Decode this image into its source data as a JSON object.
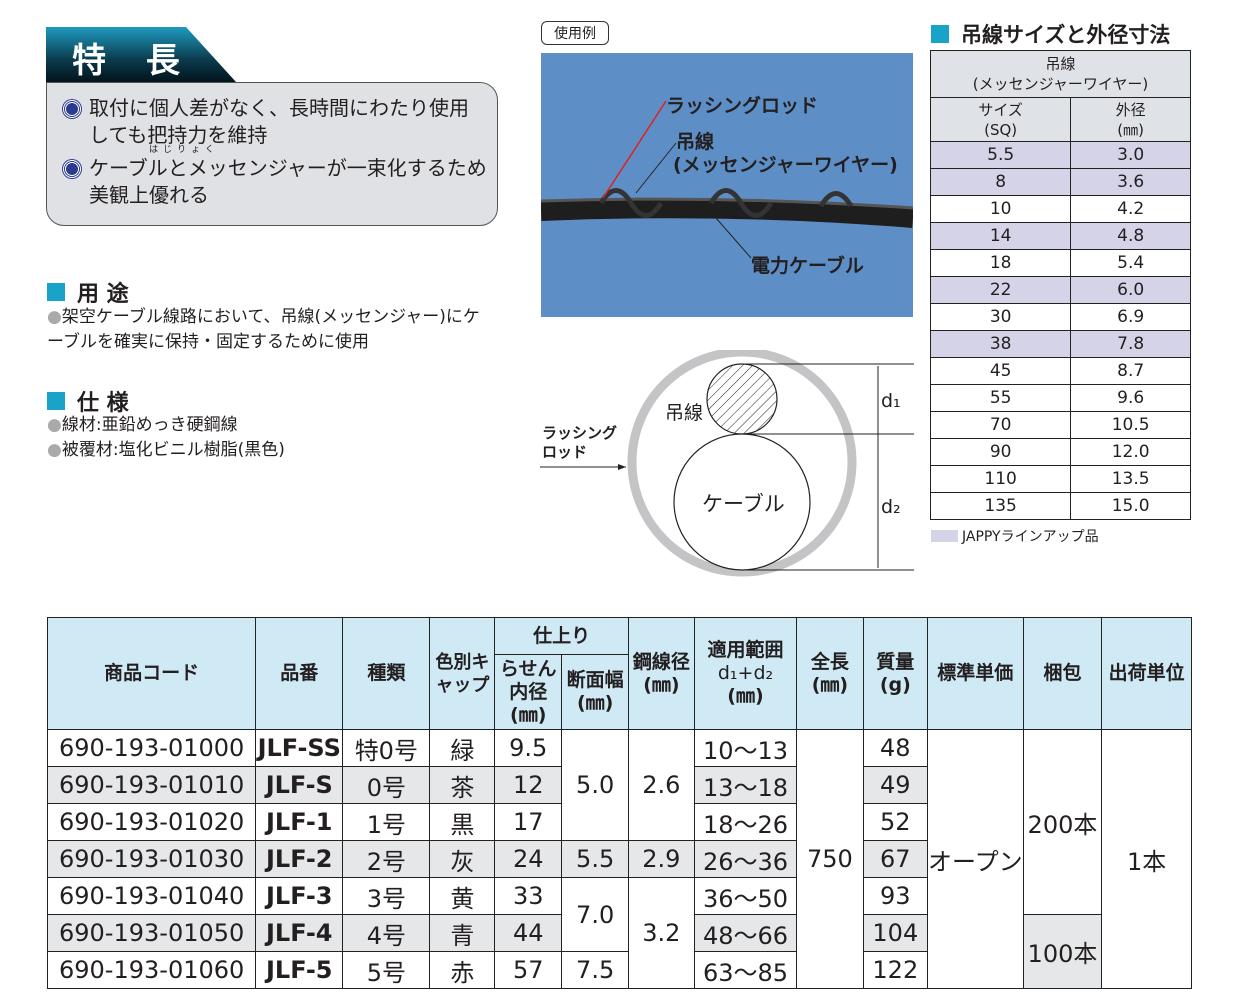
{
  "features": {
    "title": "特 長",
    "items": [
      "取付に個人差がなく、長時間にわたり使用しても把持力を維持",
      "ケーブルとメッセンジャーが一束化するため美観上優れる"
    ],
    "ruby": "はじりょく"
  },
  "usage": {
    "title": "用 途",
    "items": [
      "架空ケーブル線路において、吊線(メッセンジャー)にケーブルを確実に保持・固定するために使用"
    ]
  },
  "spec": {
    "title": "仕 様",
    "items": [
      "線材:亜鉛めっき硬鋼線",
      "被覆材:塩化ビニル樹脂(黒色)"
    ]
  },
  "example": {
    "label": "使用例",
    "lashing_rod": "ラッシングロッド",
    "messenger": "吊線",
    "messenger_sub": "(メッセンジャーワイヤー)",
    "power_cable": "電力ケーブル"
  },
  "diagram": {
    "messenger": "吊線",
    "lashing_rod_1": "ラッシング",
    "lashing_rod_2": "ロッド",
    "cable": "ケーブル",
    "d1": "d₁",
    "d2": "d₂"
  },
  "size_table": {
    "title": "吊線サイズと外径寸法",
    "group_header": "吊線",
    "group_sub": "(メッセンジャーワイヤー)",
    "col_size": "サイズ",
    "col_size_unit": "(SQ)",
    "col_od": "外径",
    "col_od_unit": "(㎜)",
    "rows": [
      [
        "5.5",
        "3.0",
        true
      ],
      [
        "8",
        "3.6",
        true
      ],
      [
        "10",
        "4.2",
        false
      ],
      [
        "14",
        "4.8",
        true
      ],
      [
        "18",
        "5.4",
        false
      ],
      [
        "22",
        "6.0",
        true
      ],
      [
        "30",
        "6.9",
        false
      ],
      [
        "38",
        "7.8",
        true
      ],
      [
        "45",
        "8.7",
        false
      ],
      [
        "55",
        "9.6",
        false
      ],
      [
        "70",
        "10.5",
        false
      ],
      [
        "90",
        "12.0",
        false
      ],
      [
        "110",
        "13.5",
        false
      ],
      [
        "135",
        "15.0",
        false
      ]
    ],
    "legend": "JAPPYラインアップ品",
    "highlight_color": "#d4d3e8"
  },
  "product_table": {
    "headers": {
      "code": "商品コード",
      "part": "品番",
      "type": "種類",
      "cap": "色別キャップ",
      "finish": "仕上り",
      "inner": "らせん内径",
      "inner_unit": "(㎜)",
      "width": "断面幅",
      "width_unit": "(㎜)",
      "wire": "鋼線径",
      "wire_unit": "(㎜)",
      "range": "適用範囲",
      "range_formula": "d₁+d₂",
      "range_unit": "(㎜)",
      "length": "全長",
      "length_unit": "(㎜)",
      "mass": "質量",
      "mass_unit": "(g)",
      "price": "標準単価",
      "pack": "梱包",
      "ship": "出荷単位"
    },
    "rows": [
      {
        "code": "690-193-01000",
        "part": "JLF-SS",
        "type": "特0号",
        "cap": "緑",
        "inner": "9.5",
        "range": "10〜13",
        "mass": "48"
      },
      {
        "code": "690-193-01010",
        "part": "JLF-S",
        "type": "0号",
        "cap": "茶",
        "inner": "12",
        "range": "13〜18",
        "mass": "49"
      },
      {
        "code": "690-193-01020",
        "part": "JLF-1",
        "type": "1号",
        "cap": "黒",
        "inner": "17",
        "range": "18〜26",
        "mass": "52"
      },
      {
        "code": "690-193-01030",
        "part": "JLF-2",
        "type": "2号",
        "cap": "灰",
        "inner": "24",
        "range": "26〜36",
        "mass": "67"
      },
      {
        "code": "690-193-01040",
        "part": "JLF-3",
        "type": "3号",
        "cap": "黄",
        "inner": "33",
        "range": "36〜50",
        "mass": "93"
      },
      {
        "code": "690-193-01050",
        "part": "JLF-4",
        "type": "4号",
        "cap": "青",
        "inner": "44",
        "range": "48〜66",
        "mass": "104"
      },
      {
        "code": "690-193-01060",
        "part": "JLF-5",
        "type": "5号",
        "cap": "赤",
        "inner": "57",
        "range": "63〜85",
        "mass": "122"
      }
    ],
    "width_groups": [
      "5.0",
      "5.5",
      "7.0",
      "7.5"
    ],
    "wire_groups": [
      "2.6",
      "2.9",
      "3.2"
    ],
    "length": "750",
    "price": "オープン",
    "pack_groups": [
      "200本",
      "100本"
    ],
    "ship": "1本"
  }
}
